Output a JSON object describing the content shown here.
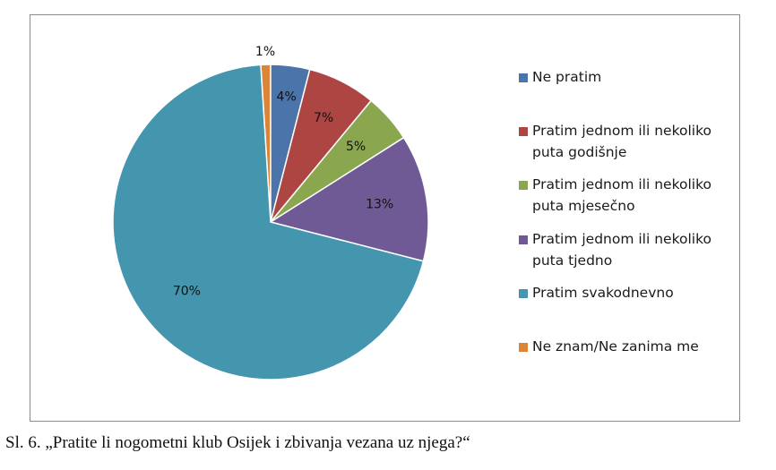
{
  "chart_data": {
    "type": "pie",
    "title": "",
    "slices": [
      {
        "label": "Ne pratim",
        "value": 4,
        "display": "4%",
        "color": "#4a74aa"
      },
      {
        "label": "Pratim jednom ili nekoliko puta godišnje",
        "value": 7,
        "display": "7%",
        "color": "#ad4643"
      },
      {
        "label": "Pratim jednom ili nekoliko puta mjesečno",
        "value": 5,
        "display": "5%",
        "color": "#8aa64f"
      },
      {
        "label": "Pratim jednom ili nekoliko puta tjedno",
        "value": 13,
        "display": "13%",
        "color": "#705a95"
      },
      {
        "label": "Pratim svakodnevno",
        "value": 70,
        "display": "70%",
        "color": "#4396ad"
      },
      {
        "label": "Ne znam/Ne zanima me",
        "value": 1,
        "display": "1%",
        "color": "#dc8538"
      }
    ],
    "legend_position": "right"
  },
  "caption": "Sl. 6. „Pratite li nogometni klub Osijek i zbivanja vezana uz njega?“"
}
